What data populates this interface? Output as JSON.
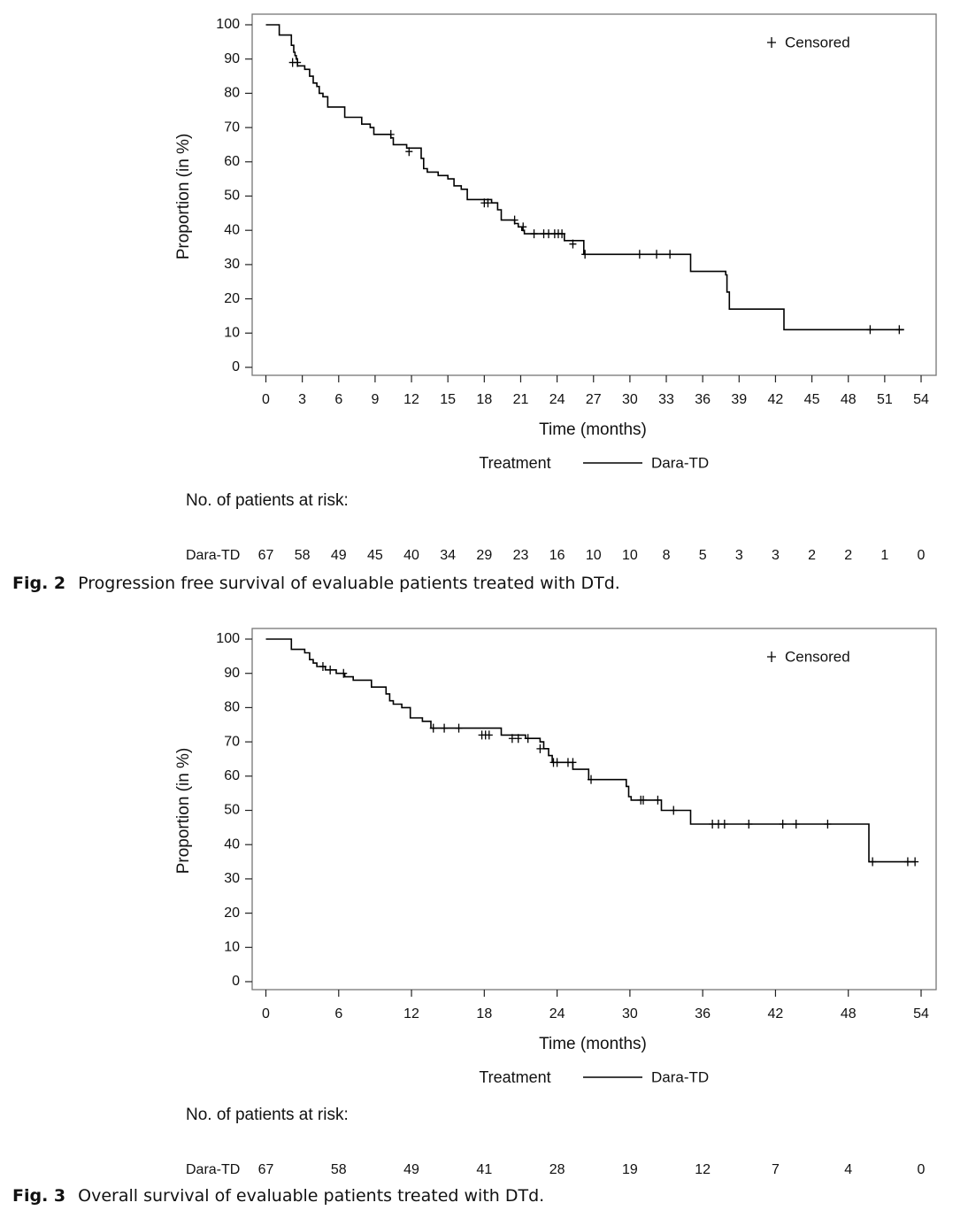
{
  "chart_data": [
    {
      "type": "line",
      "figure_label": "Fig. 2",
      "caption": "Progression free survival of evaluable patients treated with DTd.",
      "xlabel": "Time (months)",
      "ylabel": "Proportion (in %)",
      "xlim": [
        0,
        54
      ],
      "ylim": [
        0,
        100
      ],
      "x_ticks": [
        0,
        3,
        6,
        9,
        12,
        15,
        18,
        21,
        24,
        27,
        30,
        33,
        36,
        39,
        42,
        45,
        48,
        51,
        54
      ],
      "y_ticks": [
        0,
        10,
        20,
        30,
        40,
        50,
        60,
        70,
        80,
        90,
        100
      ],
      "grid": false,
      "legend_inset": "top-right",
      "censored_label": "Censored",
      "legend_title": "Treatment",
      "series": [
        {
          "name": "Dara-TD",
          "x": [
            0,
            1.1,
            2.1,
            2.3,
            2.4,
            2.5,
            2.6,
            2.9,
            3.2,
            3.6,
            3.9,
            4.2,
            4.4,
            4.7,
            5.1,
            5.9,
            6.5,
            7.9,
            8.6,
            8.9,
            10.3,
            10.5,
            11.6,
            11.7,
            12.8,
            13.0,
            13.3,
            14.2,
            15.0,
            15.5,
            16.1,
            16.6,
            18.6,
            19.1,
            19.4,
            20.5,
            20.8,
            21.1,
            21.3,
            21.6,
            24.6,
            26.2,
            35.0,
            37.9,
            38.0,
            38.2,
            42.7,
            52.6
          ],
          "y": [
            100,
            97,
            94,
            92,
            91,
            90,
            88,
            88,
            87,
            85,
            83,
            82,
            80,
            79,
            76,
            76,
            73,
            71,
            70,
            68,
            67,
            65,
            64,
            64,
            61,
            58,
            57,
            56,
            55,
            53,
            52,
            49,
            48,
            46,
            43,
            42,
            41,
            40,
            39,
            39,
            37,
            33,
            28,
            27,
            22,
            17,
            11,
            11
          ]
        }
      ],
      "censored": {
        "x": [
          2.2,
          2.6,
          10.3,
          11.8,
          18.0,
          18.3,
          20.5,
          21.2,
          22.1,
          22.9,
          23.3,
          23.8,
          24.1,
          24.4,
          25.3,
          26.3,
          30.8,
          32.2,
          33.3,
          49.8,
          52.2
        ],
        "y": [
          89,
          89,
          68,
          63,
          48,
          48,
          43,
          41,
          39,
          39,
          39,
          39,
          39,
          39,
          36,
          33,
          33,
          33,
          33,
          11,
          11
        ]
      },
      "risk_table": {
        "title": "No. of patients at risk:",
        "row_label": "Dara-TD",
        "times": [
          0,
          3,
          6,
          9,
          12,
          15,
          18,
          21,
          24,
          27,
          30,
          33,
          36,
          39,
          42,
          45,
          48,
          51,
          54
        ],
        "counts": [
          "67",
          "58",
          "49",
          "45",
          "40",
          "34",
          "29",
          "23",
          "16",
          "10",
          "10",
          "8",
          "5",
          "3",
          "3",
          "2",
          "2",
          "1",
          "0"
        ]
      }
    },
    {
      "type": "line",
      "figure_label": "Fig. 3",
      "caption": "Overall survival of evaluable patients treated with DTd.",
      "xlabel": "Time (months)",
      "ylabel": "Proportion (in %)",
      "xlim": [
        0,
        54
      ],
      "ylim": [
        0,
        100
      ],
      "x_ticks": [
        0,
        6,
        12,
        18,
        24,
        30,
        36,
        42,
        48,
        54
      ],
      "y_ticks": [
        0,
        10,
        20,
        30,
        40,
        50,
        60,
        70,
        80,
        90,
        100
      ],
      "grid": false,
      "legend_inset": "top-right",
      "censored_label": "Censored",
      "legend_title": "Treatment",
      "series": [
        {
          "name": "Dara-TD",
          "x": [
            0,
            2.1,
            3.2,
            3.6,
            3.9,
            4.2,
            4.9,
            5.8,
            6.5,
            7.2,
            8.7,
            9.9,
            10.2,
            10.5,
            11.2,
            11.9,
            12.9,
            13.6,
            19.4,
            21.4,
            22.6,
            22.9,
            23.3,
            23.6,
            25.3,
            26.6,
            29.7,
            29.9,
            30.1,
            32.6,
            35.0,
            49.7,
            53.5
          ],
          "y": [
            100,
            97,
            96,
            94,
            93,
            92,
            91,
            90,
            89,
            88,
            86,
            84,
            82,
            81,
            80,
            77,
            76,
            74,
            72,
            71,
            70,
            68,
            66,
            64,
            62,
            59,
            57,
            54,
            53,
            50,
            46,
            35,
            35
          ]
        }
      ],
      "censored": {
        "x": [
          4.7,
          5.3,
          6.4,
          13.8,
          14.7,
          15.9,
          17.8,
          18.1,
          18.4,
          20.3,
          20.8,
          21.6,
          22.6,
          23.7,
          24.0,
          24.9,
          25.3,
          26.8,
          30.9,
          31.1,
          32.3,
          33.6,
          36.8,
          37.3,
          37.8,
          39.8,
          42.6,
          43.7,
          46.3,
          50.0,
          52.9,
          53.5
        ],
        "y": [
          92,
          91,
          90,
          74,
          74,
          74,
          72,
          72,
          72,
          71,
          71,
          71,
          68,
          64,
          64,
          64,
          64,
          59,
          53,
          53,
          53,
          50,
          46,
          46,
          46,
          46,
          46,
          46,
          46,
          35,
          35,
          35
        ]
      },
      "risk_table": {
        "title": "No. of patients at risk:",
        "row_label": "Dara-TD",
        "times": [
          0,
          6,
          12,
          18,
          24,
          30,
          36,
          42,
          48,
          54
        ],
        "counts": [
          "67",
          "58",
          "49",
          "41",
          "28",
          "19",
          "12",
          "7",
          "4",
          "0"
        ]
      }
    }
  ]
}
